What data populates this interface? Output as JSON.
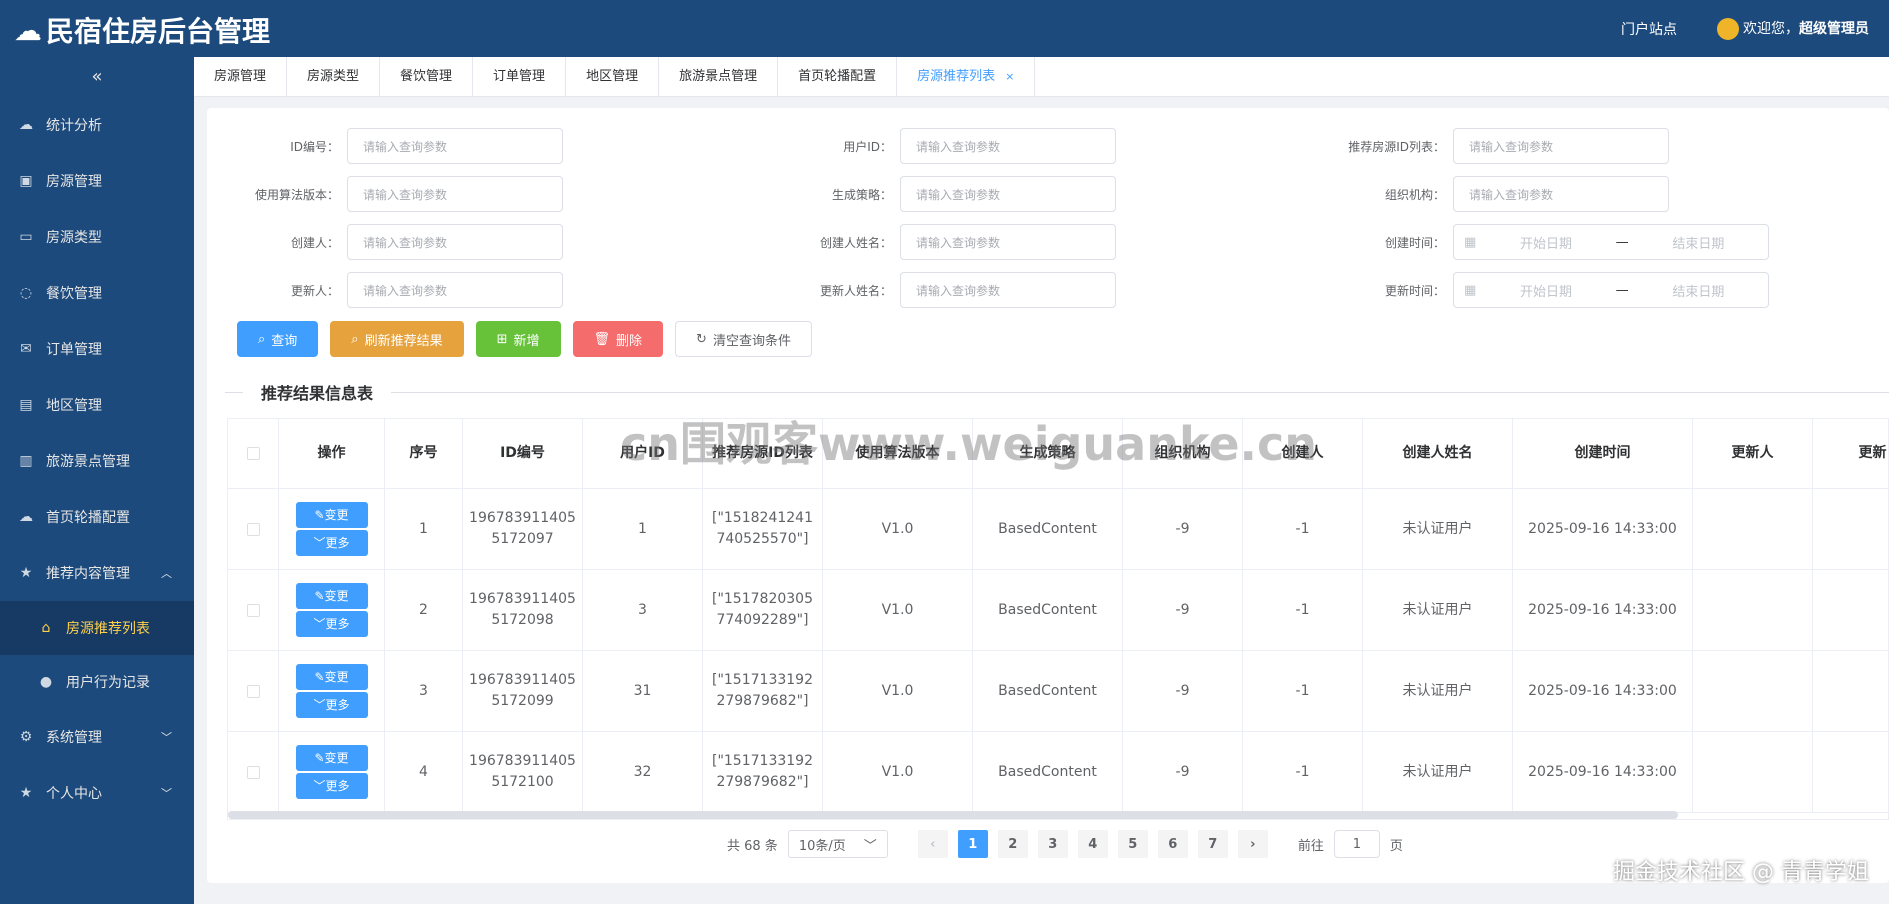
{
  "header": {
    "title": "民宿住房后台管理",
    "portal": "门户站点",
    "welcome": "欢迎您，",
    "user": "超级管理员"
  },
  "sidebar": {
    "collapse": "«",
    "items": [
      {
        "label": "统计分析",
        "icon": "cloud-icon"
      },
      {
        "label": "房源管理",
        "icon": "image-icon"
      },
      {
        "label": "房源类型",
        "icon": "board-icon"
      },
      {
        "label": "餐饮管理",
        "icon": "chat-icon"
      },
      {
        "label": "订单管理",
        "icon": "mail-icon"
      },
      {
        "label": "地区管理",
        "icon": "document-icon"
      },
      {
        "label": "旅游景点管理",
        "icon": "building-icon"
      },
      {
        "label": "首页轮播配置",
        "icon": "cloud-icon"
      },
      {
        "label": "推荐内容管理",
        "icon": "star-icon",
        "expanded": true
      },
      {
        "label": "房源推荐列表",
        "icon": "home-icon",
        "sub": true,
        "active": true
      },
      {
        "label": "用户行为记录",
        "icon": "user-icon",
        "sub": true
      },
      {
        "label": "系统管理",
        "icon": "gear-icon",
        "arrow": true
      },
      {
        "label": "个人中心",
        "icon": "star-icon",
        "arrow": true
      }
    ]
  },
  "tabs": [
    "房源管理",
    "房源类型",
    "餐饮管理",
    "订单管理",
    "地区管理",
    "旅游景点管理",
    "首页轮播配置",
    "房源推荐列表"
  ],
  "active_tab": "房源推荐列表",
  "form": {
    "placeholder": "请输入查询参数",
    "start": "开始日期",
    "end": "结束日期",
    "sep": "—",
    "fields": [
      [
        "ID编号：",
        "用户ID：",
        "推荐房源ID列表："
      ],
      [
        "使用算法版本：",
        "生成策略：",
        "组织机构："
      ],
      [
        "创建人：",
        "创建人姓名：",
        "创建时间："
      ],
      [
        "更新人：",
        "更新人姓名：",
        "更新时间："
      ]
    ]
  },
  "buttons": [
    {
      "label": "查询",
      "color": "#409eff",
      "icon": "search-icon"
    },
    {
      "label": "刷新推荐结果",
      "color": "#e6a23c",
      "icon": "search-icon"
    },
    {
      "label": "新增",
      "color": "#67c23a",
      "icon": "plus-icon"
    },
    {
      "label": "删除",
      "color": "#f56c6c",
      "icon": "trash-icon"
    },
    {
      "label": "清空查询条件",
      "color": "#ffffff",
      "icon": "refresh-icon"
    }
  ],
  "section_title": "推荐结果信息表",
  "table": {
    "columns": [
      "",
      "操作",
      "序号",
      "ID编号",
      "用户ID",
      "推荐房源ID列表",
      "使用算法版本",
      "生成策略",
      "组织机构",
      "创建人",
      "创建人姓名",
      "创建时间",
      "更新人",
      "更新"
    ],
    "edit": "变更",
    "more": "更多",
    "rows": [
      [
        "1",
        "1967839114055172097",
        "1",
        "[\"1518241241740525570\"]",
        "V1.0",
        "BasedContent",
        "-9",
        "-1",
        "未认证用户",
        "2025-09-16 14:33:00",
        "",
        ""
      ],
      [
        "2",
        "1967839114055172098",
        "3",
        "[\"1517820305774092289\"]",
        "V1.0",
        "BasedContent",
        "-9",
        "-1",
        "未认证用户",
        "2025-09-16 14:33:00",
        "",
        ""
      ],
      [
        "3",
        "1967839114055172099",
        "31",
        "[\"1517133192279879682\"]",
        "V1.0",
        "BasedContent",
        "-9",
        "-1",
        "未认证用户",
        "2025-09-16 14:33:00",
        "",
        ""
      ],
      [
        "4",
        "1967839114055172100",
        "32",
        "[\"1517133192279879682\"]",
        "V1.0",
        "BasedContent",
        "-9",
        "-1",
        "未认证用户",
        "2025-09-16 14:33:00",
        "",
        ""
      ]
    ]
  },
  "pager": {
    "total": "共 68 条",
    "size": "10条/页",
    "pages": [
      "1",
      "2",
      "3",
      "4",
      "5",
      "6",
      "7"
    ],
    "current": "1",
    "goto": "前往",
    "goto_value": "1",
    "page_unit": "页"
  },
  "watermark": "cn围观客www.weiguanke.cn",
  "watermark2": "掘金技术社区 @ 青青学姐"
}
